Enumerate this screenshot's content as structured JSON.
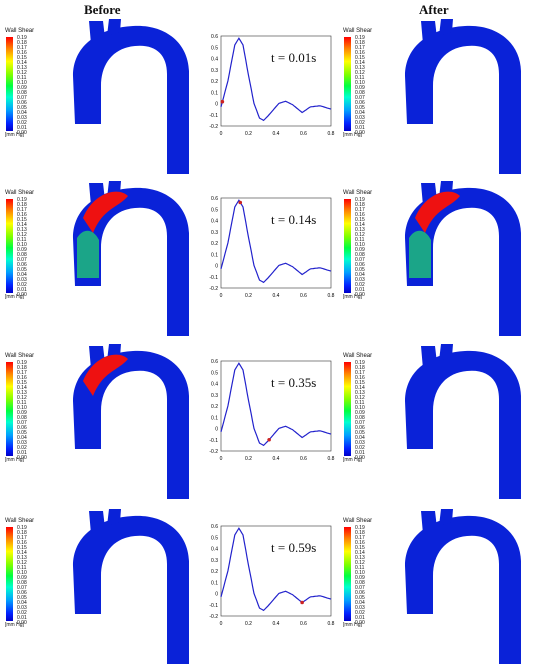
{
  "headers": {
    "before": "Before",
    "after": "After"
  },
  "legend": {
    "title": "Wall Shear",
    "ticks": [
      "0.19",
      "0.18",
      "0.17",
      "0.16",
      "0.15",
      "0.14",
      "0.13",
      "0.12",
      "0.11",
      "0.10",
      "0.09",
      "0.08",
      "0.07",
      "0.06",
      "0.05",
      "0.04",
      "0.03",
      "0.02",
      "0.01",
      "0.00"
    ],
    "unit": "[mm Hg]"
  },
  "colors": {
    "curve": "#2222cc",
    "marker": "#cc2222",
    "aorta_base": "#0a22d8"
  },
  "plot_axes": {
    "x_ticks": [
      "0",
      "0.2",
      "0.4",
      "0.6",
      "0.8"
    ],
    "y_ticks": [
      "0.6",
      "0.5",
      "0.4",
      "0.3",
      "0.2",
      "0.1",
      "0",
      "-0.1",
      "-0.2"
    ]
  },
  "rows": [
    {
      "time_label": "t = 0.01s",
      "marker_t": 0.01
    },
    {
      "time_label": "t = 0.14s",
      "marker_t": 0.14
    },
    {
      "time_label": "t = 0.35s",
      "marker_t": 0.35
    },
    {
      "time_label": "t = 0.59s",
      "marker_t": 0.59
    }
  ]
}
